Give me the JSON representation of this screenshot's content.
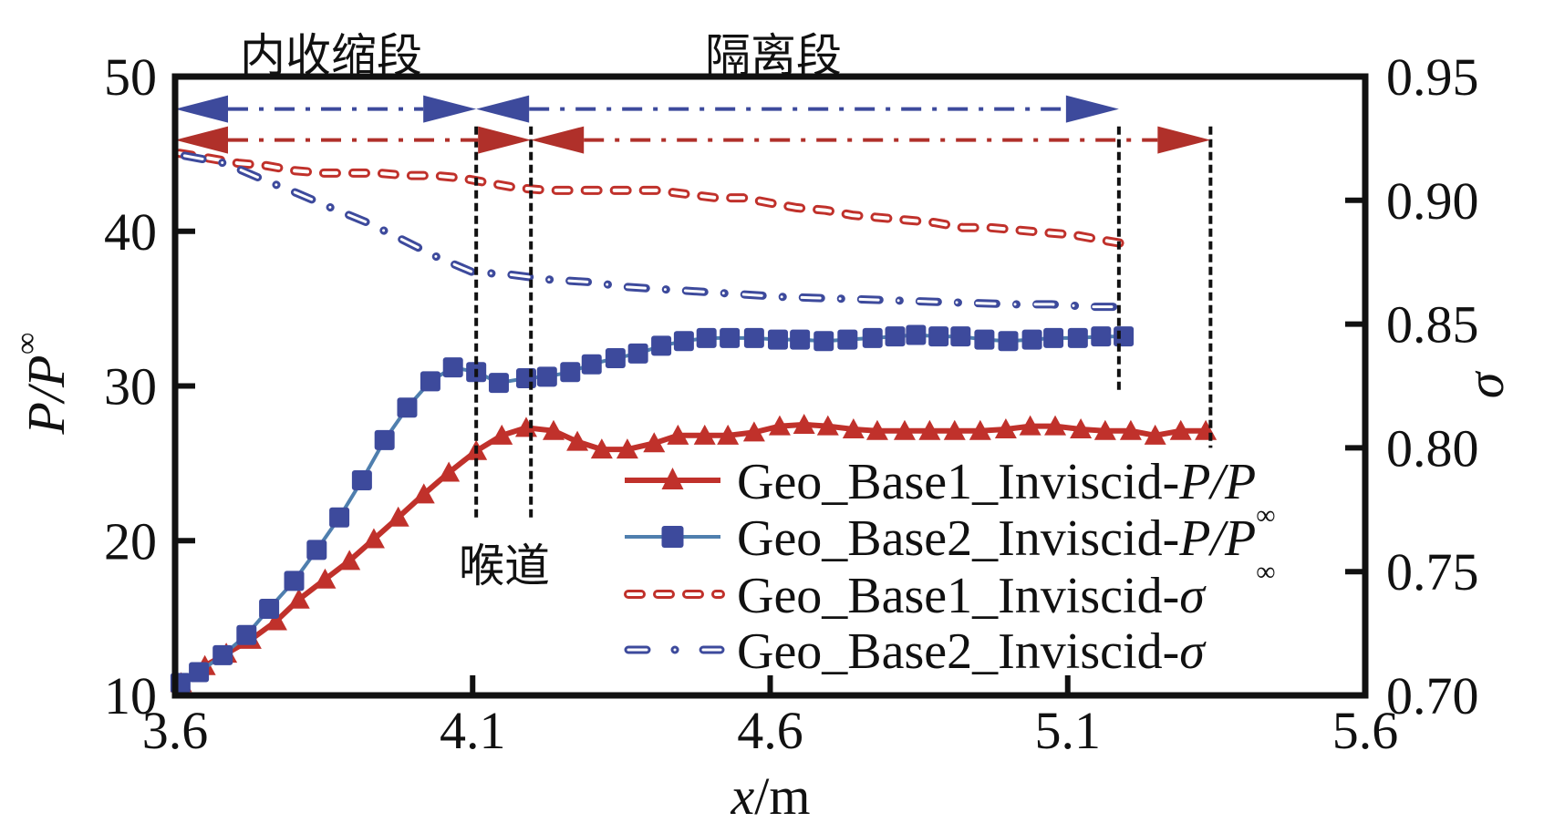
{
  "chart_data": {
    "type": "line",
    "title": "",
    "xlabel": "x/m",
    "ylabel": "P/P∞",
    "y2label": "σ",
    "xlim": [
      3.6,
      5.6
    ],
    "ylim": [
      10,
      50
    ],
    "y2lim": [
      0.7,
      0.95
    ],
    "xticks": [
      "3.6",
      "4.1",
      "4.6",
      "5.1",
      "5.6"
    ],
    "yticks": [
      "10",
      "20",
      "30",
      "40",
      "50"
    ],
    "y2ticks": [
      "0.70",
      "0.75",
      "0.80",
      "0.85",
      "0.90",
      "0.95"
    ],
    "grid": false,
    "legend_position": "bottom-right",
    "series": [
      {
        "name": "Geo_Base1_Inviscid-P/P∞",
        "label_main": "Geo_Base1_Inviscid-",
        "label_italic": "P/P",
        "label_sub": "∞",
        "axis": "left",
        "color": "#c0312b",
        "marker": "triangle",
        "style": "solid",
        "x": [
          3.61,
          3.65,
          3.686,
          3.727,
          3.77,
          3.808,
          3.852,
          3.893,
          3.934,
          3.975,
          4.018,
          4.06,
          4.106,
          4.149,
          4.19,
          4.236,
          4.276,
          4.317,
          4.36,
          4.405,
          4.445,
          4.49,
          4.529,
          4.573,
          4.616,
          4.657,
          4.697,
          4.74,
          4.78,
          4.826,
          4.868,
          4.91,
          4.953,
          4.996,
          5.037,
          5.079,
          5.122,
          5.163,
          5.206,
          5.247,
          5.29,
          5.332
        ],
        "y": [
          10.8,
          11.9,
          12.7,
          13.6,
          14.8,
          16.2,
          17.5,
          18.7,
          20.1,
          21.5,
          23.0,
          24.4,
          25.8,
          26.8,
          27.3,
          27.1,
          26.4,
          25.9,
          25.9,
          26.3,
          26.8,
          26.8,
          26.8,
          27.0,
          27.4,
          27.5,
          27.4,
          27.2,
          27.1,
          27.1,
          27.1,
          27.1,
          27.1,
          27.2,
          27.4,
          27.4,
          27.2,
          27.1,
          27.1,
          26.8,
          27.1,
          27.1
        ]
      },
      {
        "name": "Geo_Base2_Inviscid-P/P∞",
        "label_main": "Geo_Base2_Inviscid-",
        "label_italic": "P/P",
        "label_sub": "∞",
        "axis": "left",
        "color": "#3d4a9c",
        "line_color": "#4f7fae",
        "marker": "square",
        "style": "solid",
        "x": [
          3.609,
          3.64,
          3.68,
          3.72,
          3.758,
          3.8,
          3.838,
          3.876,
          3.914,
          3.952,
          3.99,
          4.029,
          4.067,
          4.106,
          4.144,
          4.19,
          4.225,
          4.264,
          4.3,
          4.34,
          4.378,
          4.417,
          4.455,
          4.493,
          4.532,
          4.573,
          4.613,
          4.65,
          4.69,
          4.73,
          4.772,
          4.81,
          4.845,
          4.883,
          4.92,
          4.96,
          5.0,
          5.04,
          5.076,
          5.117,
          5.156,
          5.194
        ],
        "y": [
          10.8,
          11.5,
          12.6,
          13.9,
          15.6,
          17.4,
          19.4,
          21.5,
          23.9,
          26.5,
          28.6,
          30.3,
          31.2,
          30.9,
          30.2,
          30.5,
          30.6,
          30.9,
          31.4,
          31.8,
          32.1,
          32.6,
          32.9,
          33.1,
          33.1,
          33.1,
          33.0,
          33.0,
          32.9,
          33.0,
          33.1,
          33.2,
          33.3,
          33.2,
          33.2,
          33.0,
          32.9,
          33.0,
          33.1,
          33.1,
          33.2,
          33.2
        ]
      },
      {
        "name": "Geo_Base1_Inviscid-σ",
        "label_main": "Geo_Base1_Inviscid-",
        "label_italic": "σ",
        "label_sub": "",
        "axis": "right",
        "color": "#c0312b",
        "marker": "none",
        "style": "dashed",
        "x": [
          3.607,
          3.657,
          3.706,
          3.754,
          3.8,
          3.849,
          3.895,
          3.941,
          3.99,
          4.036,
          4.082,
          4.128,
          4.175,
          4.228,
          4.274,
          4.32,
          4.41,
          4.476,
          4.51,
          4.555,
          4.598,
          4.644,
          4.693,
          4.738,
          4.785,
          4.83,
          4.877,
          4.923,
          4.969,
          5.015,
          5.061,
          5.111,
          5.157,
          5.206
        ],
        "y": [
          0.919,
          0.917,
          0.915,
          0.914,
          0.912,
          0.911,
          0.911,
          0.911,
          0.91,
          0.91,
          0.909,
          0.907,
          0.905,
          0.904,
          0.904,
          0.904,
          0.904,
          0.902,
          0.901,
          0.901,
          0.899,
          0.897,
          0.896,
          0.894,
          0.893,
          0.892,
          0.891,
          0.889,
          0.889,
          0.888,
          0.887,
          0.886,
          0.884,
          0.882
        ]
      },
      {
        "name": "Geo_Base2_Inviscid-σ",
        "label_main": "Geo_Base2_Inviscid-",
        "label_italic": "σ",
        "label_sub": "",
        "axis": "right",
        "color": "#3d4a9c",
        "marker": "none",
        "style": "dash-dot",
        "x": [
          3.616,
          3.684,
          3.742,
          3.804,
          3.862,
          3.923,
          3.983,
          4.041,
          4.1,
          4.164,
          4.228,
          4.294,
          4.36,
          4.489,
          4.619,
          4.75,
          4.88,
          5.009,
          5.073,
          5.139,
          5.2
        ],
        "y": [
          0.918,
          0.915,
          0.909,
          0.903,
          0.897,
          0.891,
          0.884,
          0.877,
          0.871,
          0.87,
          0.868,
          0.867,
          0.865,
          0.863,
          0.861,
          0.86,
          0.859,
          0.858,
          0.858,
          0.857,
          0.857
        ]
      }
    ],
    "annotations": {
      "region_labels": [
        {
          "text": "内收缩段",
          "x": 3.86
        },
        {
          "text": "隔离段",
          "x": 4.65
        }
      ],
      "throat_label": {
        "text": "喉道",
        "x": 4.152
      },
      "vertical_markers": [
        {
          "x": 4.106,
          "y_from": 47.6,
          "y_to": 21.3
        },
        {
          "x": 4.198,
          "y_from": 47.6,
          "y_to": 21.3
        },
        {
          "x": 5.186,
          "y_from": 47.6,
          "y_to": 29.6
        },
        {
          "x": 5.34,
          "y_from": 47.6,
          "y_to": 26.0
        }
      ],
      "range_arrows": [
        {
          "series": "Geo_Base2",
          "color": "#3d4a9c",
          "y": 47.9,
          "segments": [
            [
              3.6,
              4.106
            ],
            [
              4.106,
              5.186
            ]
          ]
        },
        {
          "series": "Geo_Base1",
          "color": "#b0302a",
          "y": 45.9,
          "segments": [
            [
              3.6,
              4.198
            ],
            [
              4.198,
              5.34
            ]
          ]
        }
      ]
    }
  }
}
